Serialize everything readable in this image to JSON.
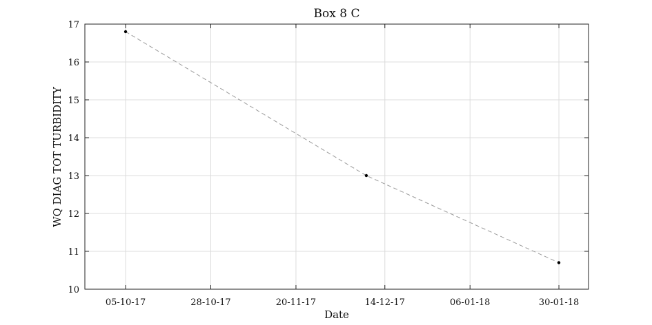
{
  "chart_data": {
    "type": "line",
    "title": "Box 8 C",
    "xlabel": "Date",
    "ylabel": "WQ DIAG TOT TURBIDITY",
    "x_tick_labels": [
      "05-10-17",
      "28-10-17",
      "20-11-17",
      "14-12-17",
      "06-01-18",
      "30-01-18"
    ],
    "y_ticks": [
      10,
      11,
      12,
      13,
      14,
      15,
      16,
      17
    ],
    "ylim": [
      10,
      17
    ],
    "xlim": [
      "2017-09-24",
      "2018-02-07"
    ],
    "grid": true,
    "series": [
      {
        "x": [
          "2017-10-05",
          "2017-12-09",
          "2018-01-30"
        ],
        "values": [
          16.8,
          13.0,
          10.7
        ]
      }
    ]
  }
}
